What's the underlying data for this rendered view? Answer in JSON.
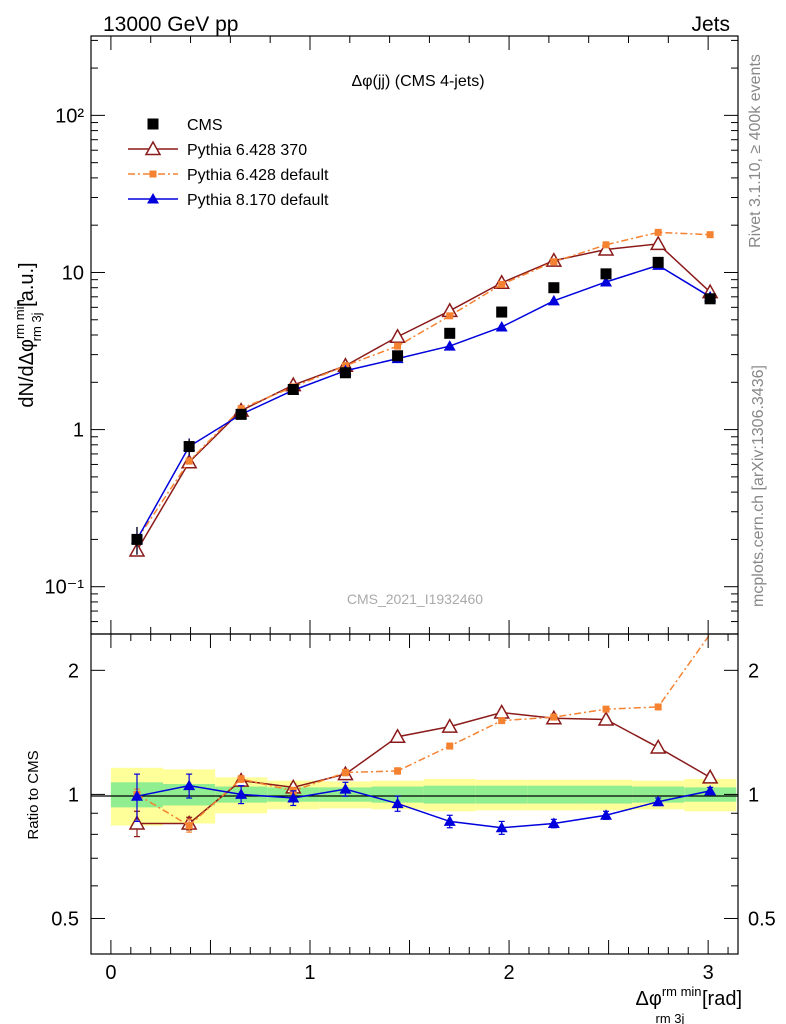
{
  "header": {
    "left": "13000 GeV pp",
    "right": "Jets"
  },
  "side_labels": {
    "rivet": "Rivet 3.1.10, ≥ 400k events",
    "mcplots": "mcplots.cern.ch [arXiv:1306.3436]"
  },
  "watermark": "CMS_2021_I1932460",
  "chart_data": [
    {
      "type": "scatter",
      "panel": "main",
      "title": "Δφ(jj) (CMS 4-jets)",
      "ylabel_parts": {
        "prefix": "dN/dΔφ",
        "sup": "rm min",
        "sub": "rm 3j",
        "suffix": " [a.u.]"
      },
      "yscale": "log",
      "ylim": [
        0.05,
        320
      ],
      "xlim": [
        -0.1,
        3.15
      ],
      "y_tick_labels": [
        "10⁻¹",
        "1",
        "10",
        "10²"
      ],
      "y_tick_values": [
        0.1,
        1,
        10,
        100
      ],
      "legend_position": "top-left",
      "x": [
        0.131,
        0.393,
        0.654,
        0.916,
        1.178,
        1.44,
        1.702,
        1.963,
        2.225,
        2.487,
        2.749,
        3.01
      ],
      "series": [
        {
          "name": "CMS",
          "color": "#000000",
          "marker": "square",
          "line": "none",
          "values": [
            0.2,
            0.78,
            1.25,
            1.8,
            2.3,
            2.95,
            4.1,
            5.6,
            8.0,
            9.8,
            11.6,
            6.8
          ],
          "errors": [
            0.04,
            0.09,
            0.06,
            0.07,
            0.09,
            0.12,
            0.16,
            0.22,
            0.3,
            0.35,
            0.4,
            0.25
          ]
        },
        {
          "name": "Pythia 6.428 370",
          "color": "#8b1a1a",
          "marker": "triangle-open",
          "line": "solid",
          "values": [
            0.17,
            0.62,
            1.32,
            1.92,
            2.55,
            3.9,
            5.7,
            8.6,
            11.9,
            14.0,
            15.2,
            7.5
          ]
        },
        {
          "name": "Pythia 6.428 default",
          "color": "#f58231",
          "marker": "square-small",
          "line": "dashdot",
          "values": [
            0.2,
            0.63,
            1.36,
            1.87,
            2.55,
            3.4,
            5.3,
            8.4,
            11.7,
            15.0,
            18.0,
            17.4
          ]
        },
        {
          "name": "Pythia 8.170 default",
          "color": "#0000dd",
          "marker": "triangle",
          "line": "solid",
          "values": [
            0.2,
            0.78,
            1.25,
            1.78,
            2.37,
            2.83,
            3.4,
            4.5,
            6.6,
            8.7,
            11.1,
            7.0
          ],
          "errors": [
            0.04,
            0.1,
            0.06,
            0.06,
            0.08,
            0.09,
            0.1,
            0.12,
            0.15,
            0.2,
            0.25,
            0.25
          ]
        }
      ]
    },
    {
      "type": "scatter",
      "panel": "ratio",
      "ylabel": "Ratio to CMS",
      "yscale": "log",
      "ylim": [
        0.41,
        2.45
      ],
      "xlim": [
        -0.1,
        3.15
      ],
      "y_tick_labels": [
        "0.5",
        "1",
        "2"
      ],
      "y_tick_values": [
        0.5,
        1,
        2
      ],
      "x_tick_labels": [
        "0",
        "1",
        "2",
        "3"
      ],
      "x_tick_values": [
        0,
        1,
        2,
        3
      ],
      "xlabel_parts": {
        "prefix": "Δφ",
        "sup": "rm min",
        "sub": "rm 3j",
        "suffix": " [rad]"
      },
      "bands": {
        "inner_color": "#90ee90",
        "outer_color": "#ffff99",
        "inner": [
          0.07,
          0.06,
          0.045,
          0.04,
          0.04,
          0.045,
          0.05,
          0.05,
          0.05,
          0.05,
          0.045,
          0.04
        ],
        "outer": [
          0.16,
          0.15,
          0.1,
          0.08,
          0.075,
          0.08,
          0.09,
          0.085,
          0.085,
          0.085,
          0.08,
          0.09
        ]
      },
      "series": [
        {
          "name": "Pythia 6.428 370",
          "color": "#8b1a1a",
          "marker": "triangle-open",
          "line": "solid",
          "values": [
            0.85,
            0.85,
            1.08,
            1.04,
            1.12,
            1.38,
            1.46,
            1.58,
            1.53,
            1.52,
            1.3,
            1.1
          ],
          "errors": [
            0.06,
            0.03,
            0.02,
            0.02,
            0.02,
            0.02,
            0.02,
            0.02,
            0.02,
            0.02,
            0.02,
            0.02
          ]
        },
        {
          "name": "Pythia 6.428 default",
          "color": "#f58231",
          "marker": "square-small",
          "line": "dashdot",
          "values": [
            1.0,
            0.84,
            1.09,
            1.02,
            1.13,
            1.14,
            1.31,
            1.51,
            1.54,
            1.61,
            1.63,
            2.5
          ],
          "errors": [
            0.03,
            0.03,
            0.02,
            0.02,
            0.02,
            0.02,
            0.02,
            0.02,
            0.02,
            0.02,
            0.02,
            0.02
          ]
        },
        {
          "name": "Pythia 8.170 default",
          "color": "#0000dd",
          "marker": "triangle",
          "line": "solid",
          "values": [
            0.99,
            1.05,
            1.0,
            0.98,
            1.03,
            0.95,
            0.86,
            0.83,
            0.85,
            0.89,
            0.96,
            1.02
          ],
          "errors": [
            0.13,
            0.07,
            0.05,
            0.04,
            0.04,
            0.04,
            0.03,
            0.03,
            0.02,
            0.02,
            0.02,
            0.02
          ]
        }
      ]
    }
  ]
}
